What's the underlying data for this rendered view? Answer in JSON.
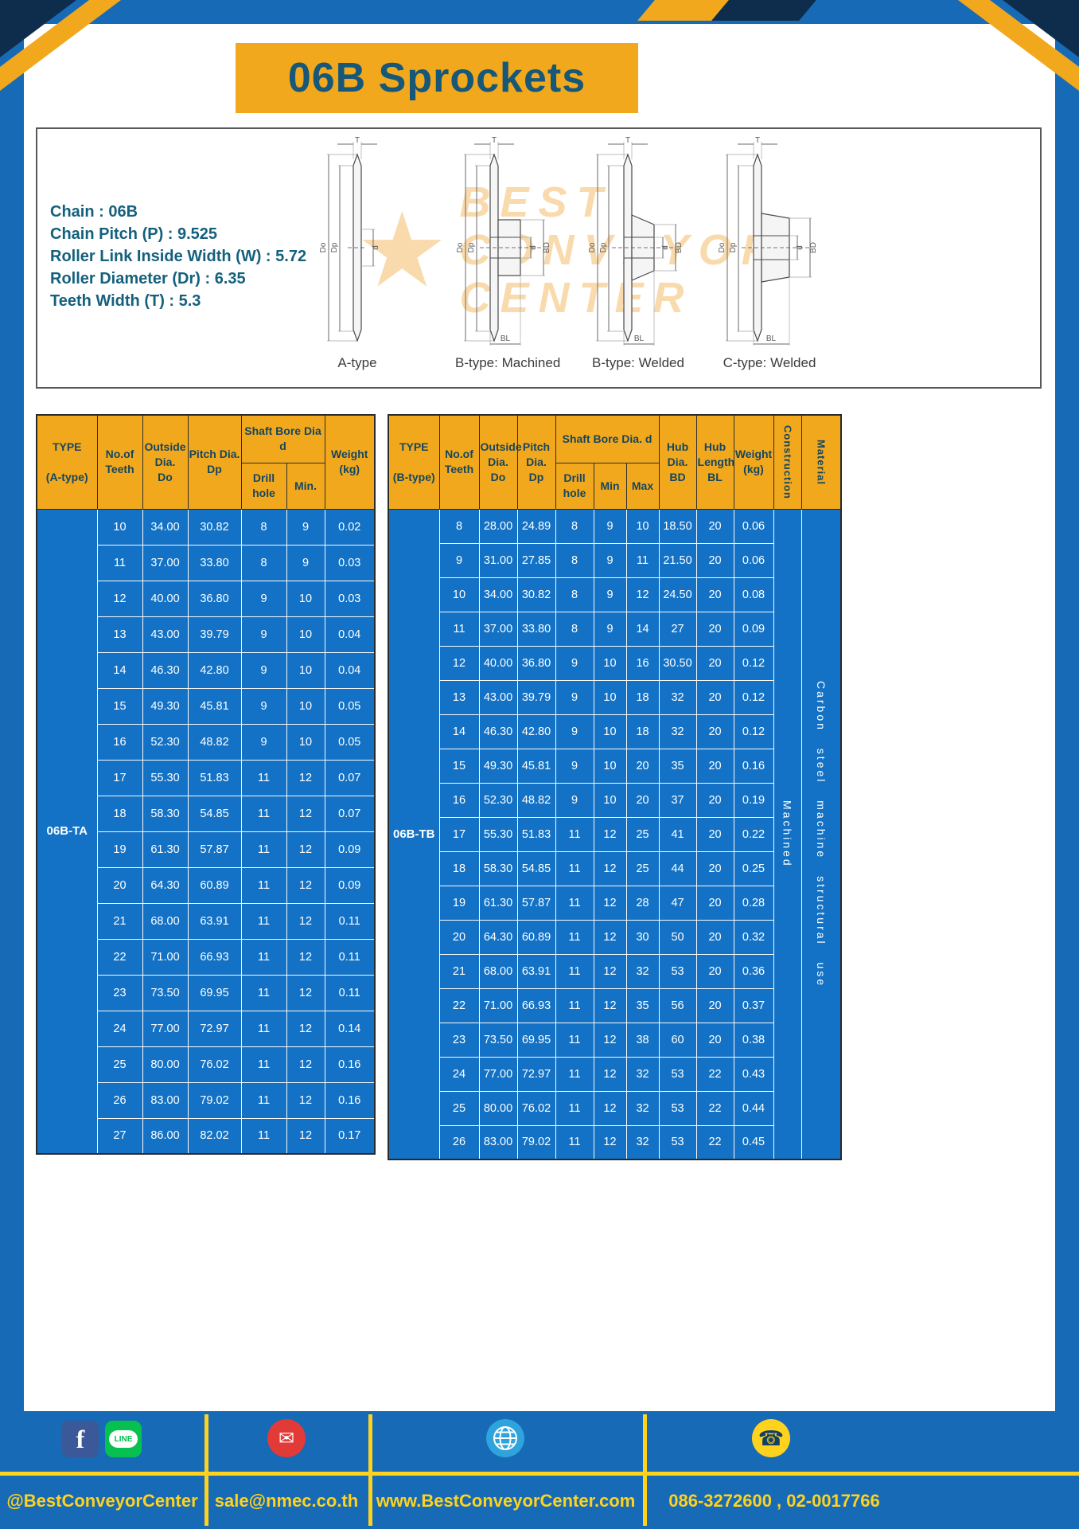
{
  "title": "06B Sprockets",
  "specs": [
    "Chain  :  06B",
    "Chain Pitch (P)  :  9.525",
    "Roller Link Inside Width (W)  :  5.72",
    "Roller Diameter (Dr)  :  6.35",
    "Teeth Width (T)  :  5.3"
  ],
  "drawings": {
    "captions": [
      "A-type",
      "B-type: Machined",
      "B-type: Welded",
      "C-type: Welded"
    ],
    "dims": {
      "T": "T",
      "Do": "Do",
      "Dp": "Dp",
      "d": "d",
      "BD": "BD",
      "BL": "BL"
    },
    "watermark": {
      "star": "★",
      "words": [
        "BEST",
        "CONVEYOR",
        "CENTER"
      ]
    }
  },
  "table_a": {
    "headers": {
      "type": "TYPE\n\n(A-type)",
      "teeth": "No.of\nTeeth",
      "outside": "Outside\nDia.\nDo",
      "pitch": "Pitch Dia.\nDp",
      "bore_group": "Shaft Bore Dia d",
      "drill": "Drill hole",
      "min": "Min.",
      "weight": "Weight\n(kg)"
    },
    "body": {
      "lead": "06B-TA",
      "rows": [
        [
          "10",
          "34.00",
          "30.82",
          "8",
          "9",
          "0.02"
        ],
        [
          "11",
          "37.00",
          "33.80",
          "8",
          "9",
          "0.03"
        ],
        [
          "12",
          "40.00",
          "36.80",
          "9",
          "10",
          "0.03"
        ],
        [
          "13",
          "43.00",
          "39.79",
          "9",
          "10",
          "0.04"
        ],
        [
          "14",
          "46.30",
          "42.80",
          "9",
          "10",
          "0.04"
        ],
        [
          "15",
          "49.30",
          "45.81",
          "9",
          "10",
          "0.05"
        ],
        [
          "16",
          "52.30",
          "48.82",
          "9",
          "10",
          "0.05"
        ],
        [
          "17",
          "55.30",
          "51.83",
          "11",
          "12",
          "0.07"
        ],
        [
          "18",
          "58.30",
          "54.85",
          "11",
          "12",
          "0.07"
        ],
        [
          "19",
          "61.30",
          "57.87",
          "11",
          "12",
          "0.09"
        ],
        [
          "20",
          "64.30",
          "60.89",
          "11",
          "12",
          "0.09"
        ],
        [
          "21",
          "68.00",
          "63.91",
          "11",
          "12",
          "0.11"
        ],
        [
          "22",
          "71.00",
          "66.93",
          "11",
          "12",
          "0.11"
        ],
        [
          "23",
          "73.50",
          "69.95",
          "11",
          "12",
          "0.11"
        ],
        [
          "24",
          "77.00",
          "72.97",
          "11",
          "12",
          "0.14"
        ],
        [
          "25",
          "80.00",
          "76.02",
          "11",
          "12",
          "0.16"
        ],
        [
          "26",
          "83.00",
          "79.02",
          "11",
          "12",
          "0.16"
        ],
        [
          "27",
          "86.00",
          "82.02",
          "11",
          "12",
          "0.17"
        ]
      ]
    }
  },
  "table_b": {
    "headers": {
      "type": "TYPE\n\n(B-type)",
      "teeth": "No.of\nTeeth",
      "outside": "Outside\nDia.\nDo",
      "pitch": "Pitch\nDia.\nDp",
      "bore_group": "Shaft Bore Dia.  d",
      "drill": "Drill hole",
      "min": "Min",
      "max": "Max",
      "hub_dia": "Hub\nDia.\nBD",
      "hub_len": "Hub\nLength\nBL",
      "weight": "Weight\n(kg)",
      "construction": "Construction",
      "material": "Material"
    },
    "body": {
      "lead": "06B-TB",
      "rows": [
        [
          "8",
          "28.00",
          "24.89",
          "8",
          "9",
          "10",
          "18.50",
          "20",
          "0.06"
        ],
        [
          "9",
          "31.00",
          "27.85",
          "8",
          "9",
          "11",
          "21.50",
          "20",
          "0.06"
        ],
        [
          "10",
          "34.00",
          "30.82",
          "8",
          "9",
          "12",
          "24.50",
          "20",
          "0.08"
        ],
        [
          "11",
          "37.00",
          "33.80",
          "8",
          "9",
          "14",
          "27",
          "20",
          "0.09"
        ],
        [
          "12",
          "40.00",
          "36.80",
          "9",
          "10",
          "16",
          "30.50",
          "20",
          "0.12"
        ],
        [
          "13",
          "43.00",
          "39.79",
          "9",
          "10",
          "18",
          "32",
          "20",
          "0.12"
        ],
        [
          "14",
          "46.30",
          "42.80",
          "9",
          "10",
          "18",
          "32",
          "20",
          "0.12"
        ],
        [
          "15",
          "49.30",
          "45.81",
          "9",
          "10",
          "20",
          "35",
          "20",
          "0.16"
        ],
        [
          "16",
          "52.30",
          "48.82",
          "9",
          "10",
          "20",
          "37",
          "20",
          "0.19"
        ],
        [
          "17",
          "55.30",
          "51.83",
          "11",
          "12",
          "25",
          "41",
          "20",
          "0.22"
        ],
        [
          "18",
          "58.30",
          "54.85",
          "11",
          "12",
          "25",
          "44",
          "20",
          "0.25"
        ],
        [
          "19",
          "61.30",
          "57.87",
          "11",
          "12",
          "28",
          "47",
          "20",
          "0.28"
        ],
        [
          "20",
          "64.30",
          "60.89",
          "11",
          "12",
          "30",
          "50",
          "20",
          "0.32"
        ],
        [
          "21",
          "68.00",
          "63.91",
          "11",
          "12",
          "32",
          "53",
          "20",
          "0.36"
        ],
        [
          "22",
          "71.00",
          "66.93",
          "11",
          "12",
          "35",
          "56",
          "20",
          "0.37"
        ],
        [
          "23",
          "73.50",
          "69.95",
          "11",
          "12",
          "38",
          "60",
          "20",
          "0.38"
        ],
        [
          "24",
          "77.00",
          "72.97",
          "11",
          "12",
          "32",
          "53",
          "22",
          "0.43"
        ],
        [
          "25",
          "80.00",
          "76.02",
          "11",
          "12",
          "32",
          "53",
          "22",
          "0.44"
        ],
        [
          "26",
          "83.00",
          "79.02",
          "11",
          "12",
          "32",
          "53",
          "22",
          "0.45"
        ]
      ],
      "tail": [
        "Machined",
        "Carbon steel machine structural use"
      ]
    }
  },
  "footer": {
    "social": "@BestConveyorCenter",
    "email": "sale@nmec.co.th",
    "website": "www.BestConveyorCenter.com",
    "phone": "086-3272600 , 02-0017766"
  },
  "icons": {
    "facebook_glyph": "f",
    "line_label": "LINE",
    "email_glyph": "✉",
    "phone_glyph": "☎"
  },
  "colors": {
    "frame_blue": "#176ab5",
    "cell_blue": "#1372c5",
    "accent_yellow": "#f2a81d",
    "bright_yellow": "#ffd21e",
    "header_text": "#15465f",
    "navy": "#0e2d4d"
  }
}
